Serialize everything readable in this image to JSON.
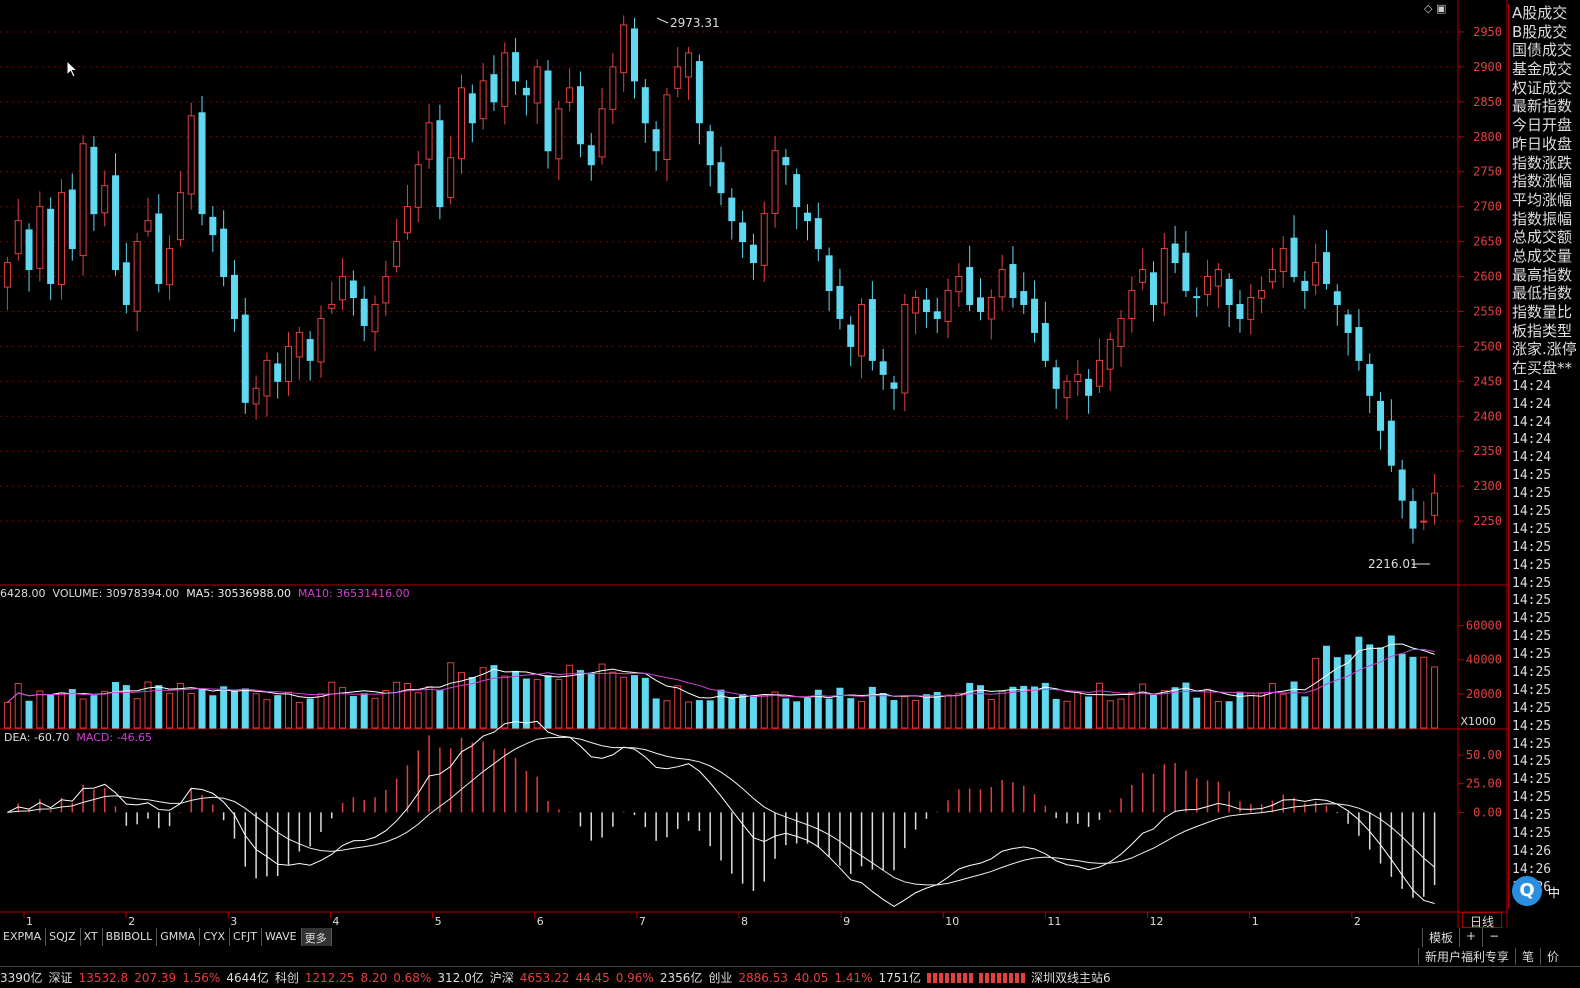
{
  "chart_data": {
    "type": "candlestick",
    "price_axis": {
      "ticks": [
        "2950",
        "2900",
        "2850",
        "2800",
        "2750",
        "2700",
        "2650",
        "2600",
        "2550",
        "2500",
        "2450",
        "2400",
        "2350",
        "2300",
        "2250"
      ],
      "ylim": [
        2160,
        2990
      ]
    },
    "high_marker": "2973.31",
    "low_marker": "2216.01",
    "volume": {
      "header": {
        "prefix": "6428.00",
        "volume_label": "VOLUME: 30978394.00",
        "ma5_label": "MA5: 30536988.00",
        "ma10_label": "MA10: 36531416.00"
      },
      "ticks": [
        "60000",
        "40000",
        "20000"
      ],
      "unit": "X1000",
      "ylim": [
        0,
        75000
      ]
    },
    "macd": {
      "header": {
        "dea_label": "DEA: -60.70",
        "macd_label": "MACD: -46.65"
      },
      "ticks": [
        "50.00",
        "25.00",
        "0.00"
      ],
      "ylim": [
        -85,
        70
      ]
    },
    "x_axis_labels": [
      "1",
      "2",
      "3",
      "4",
      "5",
      "6",
      "7",
      "8",
      "9",
      "10",
      "11",
      "12",
      "1",
      "2"
    ],
    "close_path": [
      2620,
      2680,
      2610,
      2700,
      2590,
      2720,
      2640,
      2790,
      2690,
      2730,
      2610,
      2560,
      2650,
      2680,
      2590,
      2640,
      2720,
      2830,
      2690,
      2660,
      2600,
      2540,
      2420,
      2440,
      2480,
      2450,
      2500,
      2520,
      2480,
      2540,
      2560,
      2600,
      2570,
      2530,
      2560,
      2600,
      2650,
      2700,
      2760,
      2820,
      2700,
      2770,
      2870,
      2820,
      2880,
      2850,
      2920,
      2880,
      2860,
      2900,
      2780,
      2840,
      2870,
      2790,
      2760,
      2840,
      2900,
      2960,
      2880,
      2820,
      2780,
      2860,
      2900,
      2920,
      2820,
      2760,
      2720,
      2680,
      2650,
      2620,
      2690,
      2780,
      2760,
      2700,
      2680,
      2640,
      2580,
      2540,
      2500,
      2560,
      2480,
      2460,
      2440,
      2560,
      2570,
      2550,
      2540,
      2580,
      2600,
      2560,
      2550,
      2570,
      2610,
      2570,
      2560,
      2520,
      2480,
      2440,
      2450,
      2460,
      2430,
      2480,
      2510,
      2540,
      2580,
      2610,
      2560,
      2640,
      2620,
      2580,
      2570,
      2600,
      2610,
      2560,
      2540,
      2570,
      2580,
      2610,
      2640,
      2600,
      2580,
      2620,
      2590,
      2560,
      2520,
      2480,
      2430,
      2380,
      2330,
      2280,
      2240,
      2250,
      2290
    ]
  },
  "side_panel": {
    "labels": [
      "A股成交",
      "B股成交",
      "国债成交",
      "基金成交",
      "权证成交",
      "最新指数",
      "今日开盘",
      "昨日收盘",
      "指数涨跌",
      "指数涨幅",
      "平均涨幅",
      "指数振幅",
      "总成交额",
      "总成交量",
      "最高指数",
      "最低指数",
      "指数量比",
      "板指类型",
      "涨家.涨停",
      "在买盘**"
    ],
    "times": [
      "14:24",
      "14:24",
      "14:24",
      "14:24",
      "14:24",
      "14:25",
      "14:25",
      "14:25",
      "14:25",
      "14:25",
      "14:25",
      "14:25",
      "14:25",
      "14:25",
      "14:25",
      "14:25",
      "14:25",
      "14:25",
      "14:25",
      "14:25",
      "14:25",
      "14:25",
      "14:25",
      "14:25",
      "14:25",
      "14:25",
      "14:26",
      "14:26",
      "14:26"
    ]
  },
  "indicator_tabs": [
    "EXPMA",
    "SQJZ",
    "XT",
    "BBIBOLL",
    "GMMA",
    "CYX",
    "CFJT",
    "WAVE",
    "更多"
  ],
  "right_controls": {
    "template": "模板",
    "plus": "+",
    "minus": "−",
    "period": "日线"
  },
  "promo": {
    "welfare": "新用户福利专享",
    "pen": "笔",
    "price": "价"
  },
  "badge": {
    "icon": "Q",
    "text": "中"
  },
  "status": {
    "s1": "3390亿",
    "s2_name": "深证",
    "s2_val": "13532.8",
    "s2_chg": "207.39",
    "s2_pct": "1.56%",
    "s2_amt": "4644亿",
    "s3_name": "科创",
    "s3_val": "1212.25",
    "s3_chg": "8.20",
    "s3_pct": "0.68%",
    "s3_amt": "312.0亿",
    "s4_name": "沪深",
    "s4_val": "4653.22",
    "s4_chg": "44.45",
    "s4_pct": "0.96%",
    "s4_amt": "2356亿",
    "s5_name": "创业",
    "s5_val": "2886.53",
    "s5_chg": "40.05",
    "s5_pct": "1.41%",
    "s5_amt": "1751亿",
    "s6": "深圳双线主站6"
  },
  "colors": {
    "up": "#e04040",
    "down": "#5fd8f0",
    "frame": "#b00000",
    "ma5": "#ffffff",
    "ma10": "#d040d0",
    "grid": "#7a0000"
  }
}
